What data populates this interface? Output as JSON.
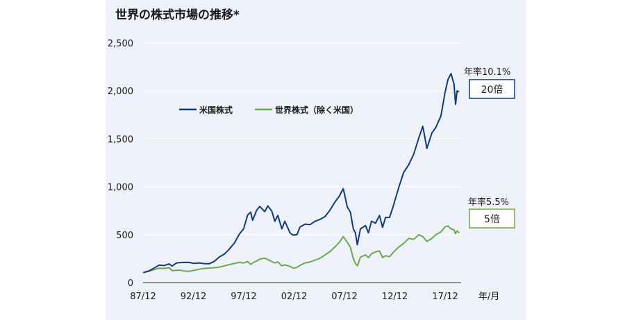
{
  "colors": {
    "us": "#0e3a7a",
    "world": "#6aa84f",
    "background": "#eef1f8",
    "grid": "#ffffff"
  },
  "chart_data": {
    "type": "line",
    "title": "世界の株式市場の推移*",
    "xlabel": "年/月",
    "ylabel": "",
    "ylim": [
      0,
      2500
    ],
    "yticks": [
      "0",
      "500",
      "1,000",
      "1,500",
      "2,000",
      "2,500"
    ],
    "ytick_values": [
      0,
      500,
      1000,
      1500,
      2000,
      2500
    ],
    "xlim": [
      1987.917,
      2019.5
    ],
    "xticks": [
      "87/12",
      "92/12",
      "97/12",
      "02/12",
      "07/12",
      "12/12",
      "17/12"
    ],
    "xtick_values": [
      1987.917,
      1992.917,
      1997.917,
      2002.917,
      2007.917,
      2012.917,
      2017.917
    ],
    "legend_position": "upper-left",
    "grid": true,
    "series": [
      {
        "name": "米国株式",
        "color_key": "us",
        "x": [
          1987.92,
          1988.5,
          1989.0,
          1989.5,
          1990.0,
          1990.5,
          1990.8,
          1991.2,
          1991.5,
          1992.0,
          1992.5,
          1993.0,
          1993.5,
          1994.0,
          1994.5,
          1995.0,
          1995.5,
          1996.0,
          1996.5,
          1997.0,
          1997.5,
          1997.9,
          1998.3,
          1998.6,
          1998.8,
          1999.2,
          1999.5,
          2000.0,
          2000.3,
          2000.7,
          2001.0,
          2001.3,
          2001.7,
          2002.0,
          2002.5,
          2002.8,
          2003.2,
          2003.5,
          2004.0,
          2004.5,
          2005.0,
          2005.5,
          2006.0,
          2006.5,
          2007.0,
          2007.4,
          2007.8,
          2008.2,
          2008.5,
          2008.8,
          2009.0,
          2009.2,
          2009.5,
          2010.0,
          2010.3,
          2010.6,
          2011.0,
          2011.4,
          2011.7,
          2012.0,
          2012.4,
          2012.8,
          2013.3,
          2013.8,
          2014.3,
          2014.8,
          2015.3,
          2015.7,
          2016.1,
          2016.6,
          2017.0,
          2017.5,
          2017.9,
          2018.2,
          2018.5,
          2018.8,
          2018.95,
          2019.1,
          2019.3
        ],
        "values": [
          103,
          122,
          150,
          182,
          178,
          195,
          172,
          202,
          208,
          212,
          210,
          200,
          205,
          198,
          197,
          222,
          268,
          298,
          352,
          415,
          510,
          560,
          705,
          735,
          650,
          755,
          795,
          740,
          800,
          745,
          640,
          700,
          560,
          640,
          520,
          495,
          500,
          580,
          610,
          605,
          640,
          660,
          690,
          760,
          845,
          900,
          980,
          790,
          735,
          560,
          520,
          395,
          560,
          595,
          520,
          640,
          620,
          700,
          575,
          680,
          680,
          810,
          990,
          1150,
          1230,
          1340,
          1510,
          1630,
          1400,
          1560,
          1620,
          1740,
          1980,
          2120,
          2180,
          2070,
          1860,
          2000,
          1990
        ]
      },
      {
        "name": "世界株式（除く米国）",
        "color_key": "world",
        "x": [
          1987.92,
          1988.5,
          1989.0,
          1989.5,
          1990.0,
          1990.5,
          1990.8,
          1991.2,
          1991.5,
          1992.0,
          1992.5,
          1993.0,
          1993.5,
          1994.0,
          1994.5,
          1995.0,
          1995.5,
          1996.0,
          1996.5,
          1997.0,
          1997.5,
          1997.9,
          1998.3,
          1998.6,
          1998.8,
          1999.2,
          1999.5,
          2000.0,
          2000.3,
          2000.7,
          2001.0,
          2001.3,
          2001.7,
          2002.0,
          2002.5,
          2002.8,
          2003.2,
          2003.5,
          2004.0,
          2004.5,
          2005.0,
          2005.5,
          2006.0,
          2006.5,
          2007.0,
          2007.4,
          2007.8,
          2008.2,
          2008.5,
          2008.8,
          2009.0,
          2009.2,
          2009.5,
          2010.0,
          2010.3,
          2010.6,
          2011.0,
          2011.4,
          2011.7,
          2012.0,
          2012.4,
          2012.8,
          2013.3,
          2013.8,
          2014.3,
          2014.8,
          2015.3,
          2015.7,
          2016.1,
          2016.6,
          2017.0,
          2017.5,
          2017.9,
          2018.2,
          2018.5,
          2018.8,
          2018.95,
          2019.1,
          2019.3
        ],
        "values": [
          103,
          118,
          135,
          150,
          148,
          155,
          125,
          128,
          130,
          122,
          118,
          128,
          140,
          148,
          152,
          155,
          162,
          175,
          188,
          200,
          212,
          205,
          220,
          190,
          205,
          225,
          245,
          255,
          240,
          220,
          205,
          215,
          175,
          185,
          170,
          150,
          158,
          180,
          205,
          215,
          235,
          255,
          290,
          325,
          375,
          420,
          480,
          420,
          370,
          250,
          200,
          175,
          265,
          290,
          260,
          300,
          320,
          330,
          260,
          280,
          270,
          320,
          370,
          410,
          460,
          450,
          500,
          480,
          430,
          460,
          500,
          530,
          580,
          590,
          560,
          550,
          510,
          540,
          520
        ]
      }
    ],
    "annotations": {
      "us_rate": "年率10.1%",
      "us_multiple": "20倍",
      "world_rate": "年率5.5%",
      "world_multiple": "5倍"
    }
  }
}
